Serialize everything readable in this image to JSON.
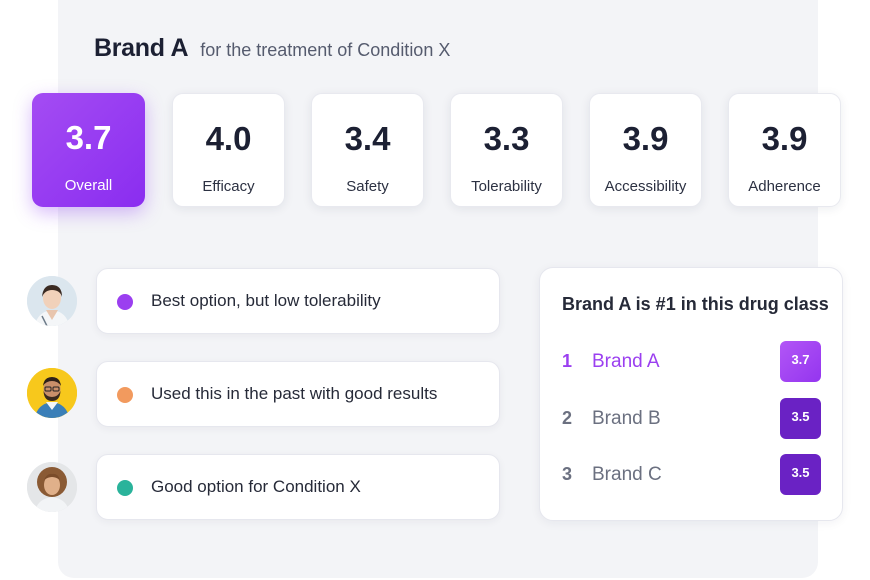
{
  "header": {
    "title": "Brand A",
    "subtitle": "for the treatment of Condition X"
  },
  "scores": [
    {
      "value": "3.7",
      "label": "Overall"
    },
    {
      "value": "4.0",
      "label": "Efficacy"
    },
    {
      "value": "3.4",
      "label": "Safety"
    },
    {
      "value": "3.3",
      "label": "Tolerability"
    },
    {
      "value": "3.9",
      "label": "Accessibility"
    },
    {
      "value": "3.9",
      "label": "Adherence"
    }
  ],
  "comments": [
    {
      "text": "Best option, but low tolerability",
      "dot_color": "#9b3ff0"
    },
    {
      "text": "Used this in the past with good results",
      "dot_color": "#f29a5e"
    },
    {
      "text": "Good option for Condition X",
      "dot_color": "#2ab39b"
    }
  ],
  "ranking": {
    "title": "Brand A is #1 in this drug class",
    "items": [
      {
        "rank": "1",
        "name": "Brand A",
        "score": "3.7"
      },
      {
        "rank": "2",
        "name": "Brand B",
        "score": "3.5"
      },
      {
        "rank": "3",
        "name": "Brand C",
        "score": "3.5"
      }
    ]
  },
  "colors": {
    "accent": "#9b3ff0",
    "badge_dark": "#6a22c4",
    "panel_bg": "#f3f4f7"
  }
}
